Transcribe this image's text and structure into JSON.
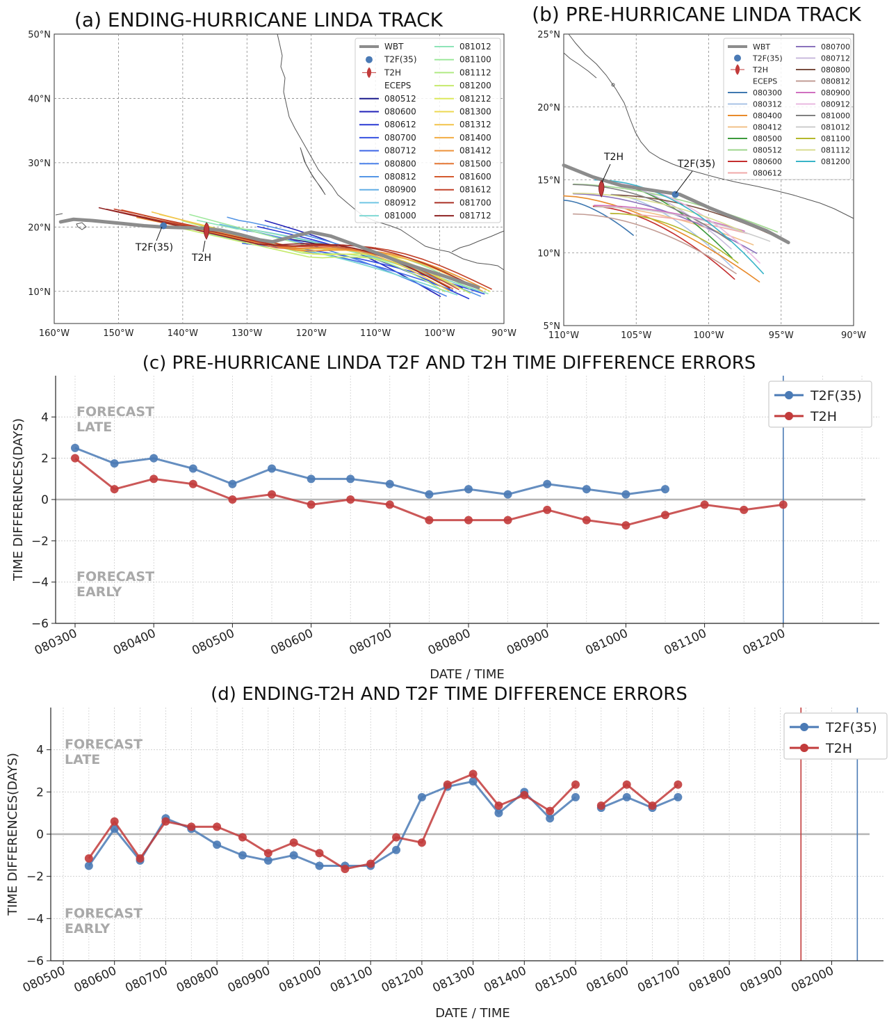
{
  "colors": {
    "t2f": "#4a7ab5",
    "t2h": "#c23b3b",
    "wbt": "#8c8c8c",
    "grid": "#c8c8c8",
    "forecast_label": "#a9a9a9"
  },
  "chart_data": [
    {
      "type": "line",
      "panel": "a",
      "title": "(a) ENDING-HURRICANE LINDA TRACK",
      "x_ticks": [
        "160°W",
        "150°W",
        "140°W",
        "130°W",
        "120°W",
        "110°W",
        "100°W",
        "90°W"
      ],
      "y_ticks": [
        "10°N",
        "20°N",
        "30°N",
        "40°N",
        "50°N"
      ],
      "xlim": [
        -160,
        -90
      ],
      "ylim": [
        5,
        50
      ],
      "legend_fixed": [
        "WBT",
        "T2F(35)",
        "T2H",
        "ECEPS"
      ],
      "ensemble_members": [
        "080512",
        "080600",
        "080612",
        "080700",
        "080712",
        "080800",
        "080812",
        "080900",
        "080912",
        "081000",
        "081012",
        "081100",
        "081112",
        "081200",
        "081212",
        "081300",
        "081312",
        "081400",
        "081412",
        "081500",
        "081600",
        "081612",
        "081700",
        "081712"
      ],
      "member_colors": [
        "#1a1a8c",
        "#2222b8",
        "#2a3ad4",
        "#3450e0",
        "#3d66e6",
        "#4a80e8",
        "#5596e6",
        "#62aee6",
        "#70c6e4",
        "#7fd8d4",
        "#8ee4b8",
        "#9ee89c",
        "#b0ea84",
        "#c6ea6c",
        "#dce85c",
        "#ecd852",
        "#f2c44a",
        "#f2ac42",
        "#ee923a",
        "#e47634",
        "#d45a2e",
        "#c2422a",
        "#aa3026",
        "#8e2222"
      ],
      "wbt": [
        [
          -159,
          20.8
        ],
        [
          -157,
          21.2
        ],
        [
          -154,
          21.0
        ],
        [
          -150,
          20.6
        ],
        [
          -146,
          20.2
        ],
        [
          -143,
          20.0
        ],
        [
          -140,
          19.9
        ],
        [
          -137,
          19.8
        ],
        [
          -134,
          19.5
        ],
        [
          -131,
          18.8
        ],
        [
          -128,
          18.0
        ],
        [
          -126,
          17.7
        ],
        [
          -123,
          18.5
        ],
        [
          -120,
          19.2
        ],
        [
          -117,
          18.6
        ],
        [
          -112,
          16.8
        ],
        [
          -106,
          14.5
        ],
        [
          -100,
          12.6
        ],
        [
          -97,
          11.6
        ],
        [
          -94,
          10.6
        ]
      ],
      "t2f_marker": [
        -143,
        20.2
      ],
      "t2f_label": "T2F(35)",
      "t2h_marker": [
        -136.3,
        19.4
      ],
      "t2h_label": "T2H"
    },
    {
      "type": "line",
      "panel": "b",
      "title": "(b) PRE-HURRICANE LINDA TRACK",
      "x_ticks": [
        "110°W",
        "105°W",
        "100°W",
        "95°W",
        "90°W"
      ],
      "y_ticks": [
        "5°N",
        "10°N",
        "15°N",
        "20°N",
        "25°N"
      ],
      "xlim": [
        -110,
        -90
      ],
      "ylim": [
        5,
        25
      ],
      "legend_fixed": [
        "WBT",
        "T2F(35)",
        "T2H",
        "ECEPS"
      ],
      "ensemble_members": [
        "080300",
        "080312",
        "080400",
        "080412",
        "080500",
        "080512",
        "080600",
        "080612",
        "080700",
        "080712",
        "080800",
        "080812",
        "080900",
        "080912",
        "081000",
        "081012",
        "081100",
        "081112",
        "081200"
      ],
      "member_colors": [
        "#3f78b0",
        "#a9c3e6",
        "#e88a2a",
        "#f2c088",
        "#3c9a3c",
        "#9ed68c",
        "#c42e2e",
        "#f0a8a8",
        "#8a72bc",
        "#c8badc",
        "#7a4e40",
        "#c29c94",
        "#d070c0",
        "#eab8e0",
        "#808080",
        "#cccccc",
        "#b4b82c",
        "#d8dc90",
        "#38b4c8"
      ],
      "wbt": [
        [
          -110,
          16.0
        ],
        [
          -108,
          15.2
        ],
        [
          -106,
          14.6
        ],
        [
          -104,
          14.3
        ],
        [
          -102,
          14.0
        ],
        [
          -100,
          13.1
        ],
        [
          -98,
          12.3
        ],
        [
          -96,
          11.5
        ],
        [
          -94.5,
          10.7
        ]
      ],
      "t2f_marker": [
        -102.3,
        14.0
      ],
      "t2f_label": "T2F(35)",
      "t2h_marker": [
        -107.4,
        14.4
      ],
      "t2h_label": "T2H"
    },
    {
      "type": "line",
      "panel": "c",
      "title": "(c) PRE-HURRICANE LINDA T2F AND T2H TIME DIFFERENCE ERRORS",
      "xlabel": "DATE / TIME",
      "ylabel": "TIME DIFFERENCES(DAYS)",
      "x_ticks": [
        "080300",
        "080400",
        "080500",
        "080600",
        "080700",
        "080800",
        "080900",
        "081000",
        "081100",
        "081200"
      ],
      "ylim": [
        -6,
        6
      ],
      "y_ticks": [
        -6,
        -4,
        -2,
        0,
        2,
        4
      ],
      "forecast_late": [
        "FORECAST",
        "LATE"
      ],
      "forecast_early": [
        "FORECAST",
        "EARLY"
      ],
      "vlines": [
        {
          "x": 9.0,
          "color": "#4a7ab5"
        },
        {
          "x": 10.5,
          "color": "#c23b3b"
        }
      ],
      "series": [
        {
          "name": "T2F(35)",
          "color": "#4a7ab5",
          "x": [
            0,
            0.5,
            1,
            1.5,
            2,
            2.5,
            3,
            3.5,
            4,
            4.5,
            5,
            5.5,
            6,
            6.5,
            7,
            7.5
          ],
          "y": [
            2.5,
            1.75,
            2.0,
            1.5,
            0.75,
            1.5,
            1.0,
            1.0,
            0.75,
            0.25,
            0.5,
            0.25,
            0.75,
            0.5,
            0.25,
            0.5
          ]
        },
        {
          "name": "T2H",
          "color": "#c23b3b",
          "x": [
            0,
            0.5,
            1,
            1.5,
            2,
            2.5,
            3,
            3.5,
            4,
            4.5,
            5,
            5.5,
            6,
            6.5,
            7,
            7.5,
            8,
            8.5,
            9
          ],
          "y": [
            2.0,
            0.5,
            1.0,
            0.75,
            0.0,
            0.25,
            -0.25,
            0.0,
            -0.25,
            -1.0,
            -1.0,
            -1.0,
            -0.5,
            -1.0,
            -1.25,
            -0.75,
            -0.25,
            -0.5,
            -0.25
          ]
        }
      ]
    },
    {
      "type": "line",
      "panel": "d",
      "title": "(d) ENDING-T2H AND T2F TIME DIFFERENCE ERRORS",
      "xlabel": "DATE / TIME",
      "ylabel": "TIME DIFFERENCES(DAYS)",
      "x_ticks": [
        "080500",
        "080600",
        "080700",
        "080800",
        "080900",
        "081000",
        "081100",
        "081200",
        "081300",
        "081400",
        "081500",
        "081600",
        "081700",
        "081800",
        "081900",
        "082000"
      ],
      "ylim": [
        -6,
        6
      ],
      "y_ticks": [
        -6,
        -4,
        -2,
        0,
        2,
        4
      ],
      "forecast_late": [
        "FORECAST",
        "LATE"
      ],
      "forecast_early": [
        "FORECAST",
        "EARLY"
      ],
      "vlines": [
        {
          "x": 14.4,
          "color": "#c23b3b"
        },
        {
          "x": 15.5,
          "color": "#4a7ab5"
        }
      ],
      "series": [
        {
          "name": "T2F(35)",
          "color": "#4a7ab5",
          "segments": [
            {
              "x": [
                0.5,
                1,
                1.5,
                2,
                2.5,
                3,
                3.5,
                4,
                4.5,
                5,
                5.5,
                6,
                6.5,
                7,
                7.5,
                8,
                8.5,
                9,
                9.5,
                10
              ],
              "y": [
                -1.5,
                0.25,
                -1.25,
                0.75,
                0.25,
                -0.5,
                -1.0,
                -1.25,
                -1.0,
                -1.5,
                -1.5,
                -1.5,
                -0.75,
                1.75,
                2.25,
                2.5,
                1.0,
                2.0,
                0.75,
                1.75
              ]
            },
            {
              "x": [
                10.5,
                11,
                11.5,
                12
              ],
              "y": [
                1.25,
                1.75,
                1.25,
                1.75
              ]
            }
          ]
        },
        {
          "name": "T2H",
          "color": "#c23b3b",
          "segments": [
            {
              "x": [
                0.5,
                1,
                1.5,
                2,
                2.5,
                3,
                3.5,
                4,
                4.5,
                5,
                5.5,
                6,
                6.5,
                7,
                7.5,
                8,
                8.5,
                9,
                9.5,
                10
              ],
              "y": [
                -1.15,
                0.6,
                -1.15,
                0.6,
                0.35,
                0.35,
                -0.15,
                -0.9,
                -0.4,
                -0.9,
                -1.65,
                -1.4,
                -0.15,
                -0.4,
                2.35,
                2.85,
                1.35,
                1.85,
                1.1,
                2.35
              ]
            },
            {
              "x": [
                10.5,
                11,
                11.5,
                12
              ],
              "y": [
                1.35,
                2.35,
                1.35,
                2.35
              ]
            }
          ]
        }
      ]
    }
  ]
}
